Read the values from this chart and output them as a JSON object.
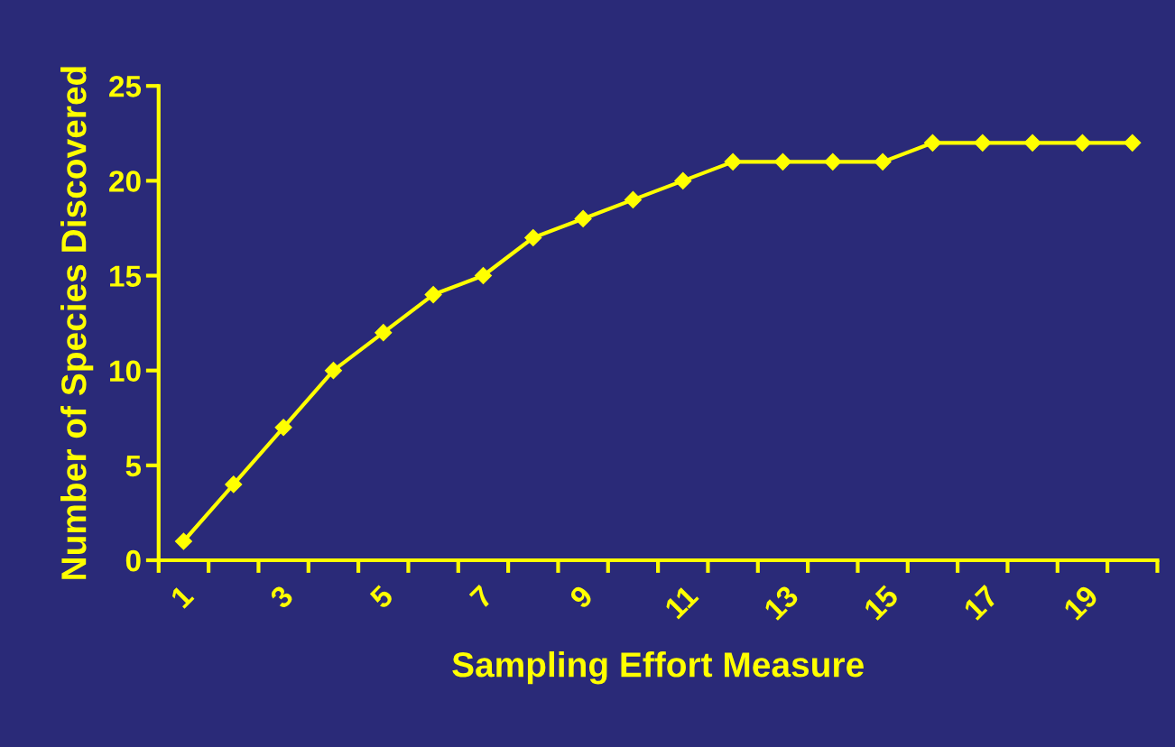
{
  "chart_data": {
    "type": "line",
    "xlabel": "Sampling Effort Measure",
    "ylabel": "Number of Species Discovered",
    "categories": [
      "1",
      null,
      "3",
      null,
      "5",
      null,
      "7",
      null,
      "9",
      null,
      "11",
      null,
      "13",
      null,
      "15",
      null,
      "17",
      null,
      "19",
      null
    ],
    "series": [
      {
        "color": "#ffff00",
        "values": [
          1,
          4,
          7,
          10,
          12,
          14,
          15,
          17,
          18,
          19,
          20,
          21,
          21,
          21,
          21,
          22,
          22,
          22,
          22,
          22
        ]
      }
    ],
    "ylim": [
      0,
      25
    ],
    "yticks": [
      0,
      5,
      10,
      15,
      20,
      25
    ],
    "grid": false,
    "legend": false,
    "marker": "diamond",
    "line_style": "solid"
  }
}
